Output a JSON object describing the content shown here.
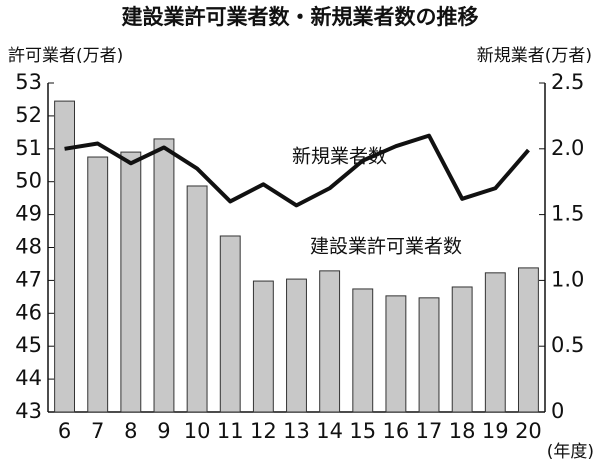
{
  "chart_data": {
    "type": "bar",
    "title": "建設業許可業者数・新規業者数の推移",
    "y_label": "許可業者(万者)",
    "y2_label": "新規業者(万者)",
    "x_label": "(年度)",
    "annotations": [
      "新規業者数",
      "建設業許可業者数"
    ],
    "categories": [
      "6",
      "7",
      "8",
      "9",
      "10",
      "11",
      "12",
      "13",
      "14",
      "15",
      "16",
      "17",
      "18",
      "19",
      "20"
    ],
    "series": [
      {
        "name": "建設業許可業者数",
        "type": "bar",
        "color": "#c8c8c8",
        "values": [
          52.45,
          50.75,
          50.9,
          51.3,
          49.87,
          48.35,
          46.98,
          47.04,
          47.29,
          46.74,
          46.53,
          46.47,
          46.8,
          47.23,
          47.38
        ]
      },
      {
        "name": "新規業者数",
        "type": "line",
        "axis": "y2",
        "color": "#111111",
        "values": [
          2.0,
          2.04,
          1.89,
          2.01,
          1.85,
          1.6,
          1.73,
          1.57,
          1.7,
          1.91,
          2.02,
          2.1,
          1.62,
          1.7,
          1.99
        ]
      }
    ],
    "ylim": [
      43,
      53
    ],
    "yticks": [
      43,
      44,
      45,
      46,
      47,
      48,
      49,
      50,
      51,
      52,
      53
    ],
    "y2lim": [
      0,
      2.5
    ],
    "y2ticks": [
      0,
      0.5,
      {
        "value": 1.0,
        "label": "1.0"
      },
      1.5,
      {
        "value": 2.0,
        "label": "2.0"
      },
      2.5
    ],
    "grid": false
  }
}
